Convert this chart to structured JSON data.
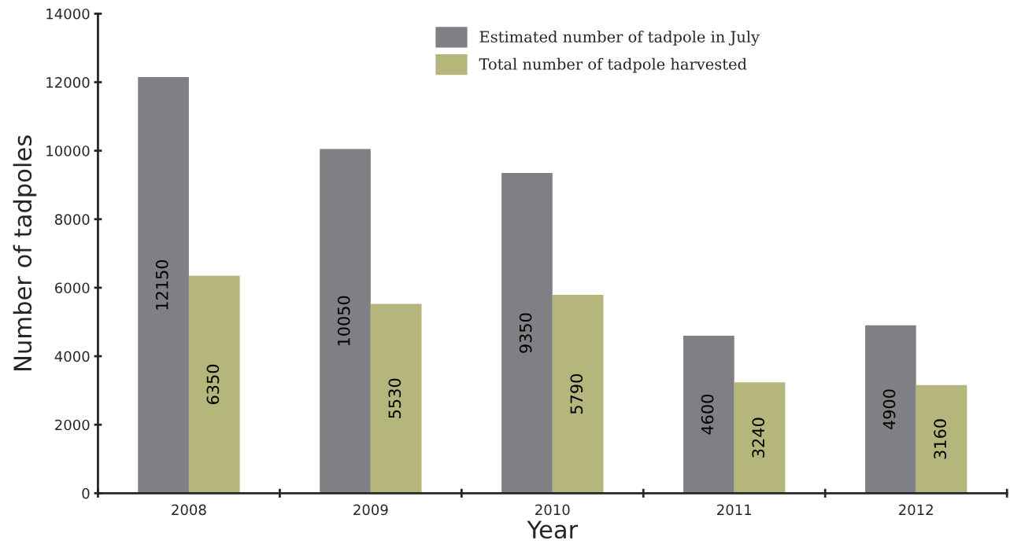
{
  "chart_data": {
    "type": "bar",
    "xlabel": "Year",
    "ylabel": "Number of tadpoles",
    "categories": [
      "2008",
      "2009",
      "2010",
      "2011",
      "2012"
    ],
    "series": [
      {
        "name": "Estimated number of tadpole in July",
        "color": "#7f8083",
        "values": [
          12150,
          10050,
          9350,
          4600,
          4900
        ]
      },
      {
        "name": "Total number of tadpole harvested",
        "color": "#b5b67b",
        "values": [
          6350,
          5530,
          5790,
          3240,
          3160
        ]
      }
    ],
    "ylim": [
      0,
      14000
    ],
    "yticks": [
      0,
      2000,
      4000,
      6000,
      8000,
      10000,
      12000,
      14000
    ],
    "data_labels": true,
    "legend": "top",
    "grid": false
  }
}
